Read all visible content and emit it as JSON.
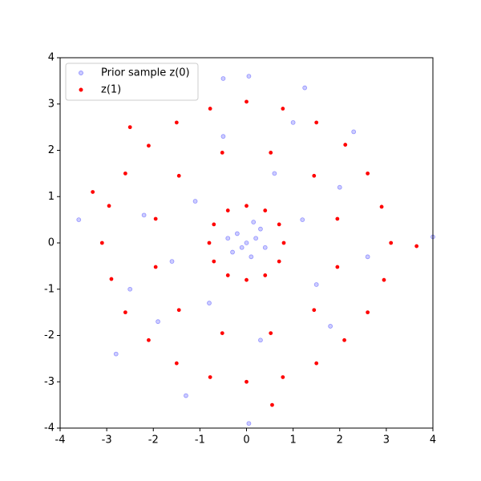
{
  "chart_data": {
    "type": "scatter",
    "xlim": [
      -4,
      4
    ],
    "ylim": [
      -4,
      4
    ],
    "xticks": [
      -4,
      -3,
      -2,
      -1,
      0,
      1,
      2,
      3,
      4
    ],
    "yticks": [
      -4,
      -3,
      -2,
      -1,
      0,
      1,
      2,
      3,
      4
    ],
    "legend": "upper left",
    "series": [
      {
        "name": "Prior sample z(0)",
        "color": "#0000ff",
        "x": [
          0,
          0.2,
          -0.2,
          0.1,
          -0.1,
          0.3,
          -0.3,
          0.15,
          -0.4,
          0.4,
          1.2,
          -1.1,
          0.6,
          -0.8,
          1.5,
          -1.6,
          2.0,
          -2.2,
          0.3,
          -0.5,
          1.8,
          -1.9,
          2.6,
          -2.5,
          1.0,
          4.0,
          -3.6,
          0.05,
          -0.5,
          0.05,
          1.25,
          -2.8,
          -1.3,
          2.3
        ],
        "y": [
          0,
          0.1,
          0.2,
          -0.3,
          -0.1,
          0.3,
          -0.2,
          0.45,
          0.1,
          -0.1,
          0.5,
          0.9,
          1.5,
          -1.3,
          -0.9,
          -0.4,
          1.2,
          0.6,
          -2.1,
          2.3,
          -1.8,
          -1.7,
          -0.3,
          -1.0,
          2.6,
          0.13,
          0.5,
          -3.9,
          3.55,
          3.6,
          3.35,
          -2.4,
          -3.3,
          2.4
        ]
      },
      {
        "name": "z(1)",
        "color": "#ff0000",
        "x": [
          3.1,
          2.9,
          2.6,
          2.12,
          1.5,
          0.78,
          0,
          -0.78,
          -1.5,
          -2.1,
          -2.6,
          -2.95,
          -3.1,
          -2.9,
          -2.6,
          -2.1,
          -1.5,
          -0.78,
          0,
          0.78,
          1.5,
          2.1,
          2.6,
          2.95,
          1.95,
          1.45,
          0.52,
          -0.52,
          -1.45,
          -1.95,
          -1.95,
          -1.45,
          -0.52,
          0.52,
          1.45,
          1.95,
          0.8,
          0.7,
          0.4,
          0,
          -0.4,
          -0.7,
          -0.8,
          -0.7,
          -0.4,
          0,
          0.4,
          0.7,
          3.65,
          0.55,
          -3.3,
          -2.5
        ],
        "y": [
          0,
          0.78,
          1.5,
          2.12,
          2.6,
          2.9,
          3.05,
          2.9,
          2.6,
          2.1,
          1.5,
          0.8,
          0,
          -0.78,
          -1.5,
          -2.1,
          -2.6,
          -2.9,
          -3.0,
          -2.9,
          -2.6,
          -2.1,
          -1.5,
          -0.8,
          0.52,
          1.45,
          1.95,
          1.95,
          1.45,
          0.52,
          -0.52,
          -1.45,
          -1.95,
          -1.95,
          -1.45,
          -0.52,
          0,
          0.4,
          0.7,
          0.8,
          0.7,
          0.4,
          0,
          -0.4,
          -0.7,
          -0.8,
          -0.7,
          -0.4,
          -0.07,
          -3.5,
          1.1,
          2.5
        ]
      }
    ]
  }
}
